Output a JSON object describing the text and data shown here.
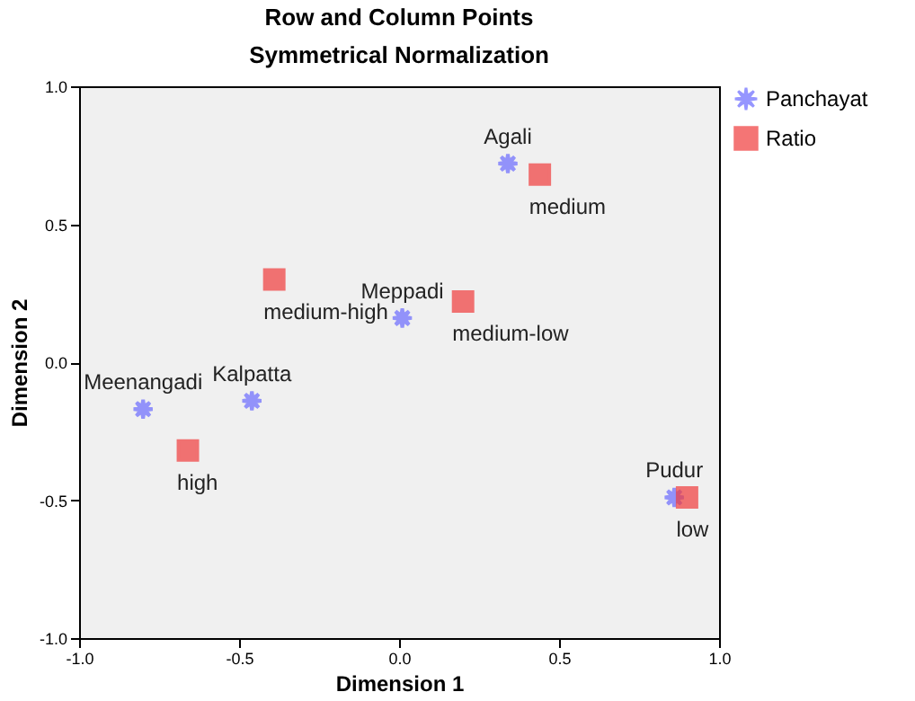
{
  "chart_data": {
    "type": "scatter",
    "title": "Row and Column Points",
    "subtitle": "Symmetrical Normalization",
    "xlabel": "Dimension 1",
    "ylabel": "Dimension 2",
    "xlim": [
      -1,
      1
    ],
    "ylim": [
      -1,
      1
    ],
    "xticks": [
      {
        "value": -1,
        "label": "-1.0"
      },
      {
        "value": -0.5,
        "label": "-0.5"
      },
      {
        "value": 0,
        "label": "0.0"
      },
      {
        "value": 0.5,
        "label": "0.5"
      },
      {
        "value": 1,
        "label": "1.0"
      }
    ],
    "yticks": [
      {
        "value": -1,
        "label": "-1.0"
      },
      {
        "value": -0.5,
        "label": "-0.5"
      },
      {
        "value": 0,
        "label": "0.0"
      },
      {
        "value": 0.5,
        "label": "0.5"
      },
      {
        "value": 1,
        "label": "1.0"
      }
    ],
    "grid": false,
    "legend": "top right",
    "series": [
      {
        "name": "Panchayat",
        "color": "#6b6bff",
        "marker": "star",
        "x": [
          0.34,
          0.01,
          -0.8,
          -0.46,
          0.86
        ],
        "values": [
          0.72,
          0.16,
          -0.17,
          -0.14,
          -0.49
        ]
      },
      {
        "name": "Ratio",
        "color": "#f03c3c",
        "marker": "square",
        "x": [
          0.44,
          -0.39,
          0.2,
          -0.66,
          0.9
        ],
        "values": [
          0.68,
          0.3,
          0.22,
          -0.32,
          -0.49
        ]
      }
    ],
    "annotations": [
      {
        "text": "Agali",
        "x": 0.34,
        "y": 0.72
      },
      {
        "text": "medium",
        "x": 0.44,
        "y": 0.68
      },
      {
        "text": "medium-high",
        "x": -0.39,
        "y": 0.3
      },
      {
        "text": "Meppadi",
        "x": 0.01,
        "y": 0.16
      },
      {
        "text": "medium-low",
        "x": 0.2,
        "y": 0.22
      },
      {
        "text": "Meenangadi",
        "x": -0.8,
        "y": -0.17
      },
      {
        "text": "Kalpatta",
        "x": -0.46,
        "y": -0.14
      },
      {
        "text": "high",
        "x": -0.66,
        "y": -0.32
      },
      {
        "text": "Pudur",
        "x": 0.86,
        "y": -0.49
      },
      {
        "text": "low",
        "x": 0.9,
        "y": -0.49
      }
    ]
  }
}
